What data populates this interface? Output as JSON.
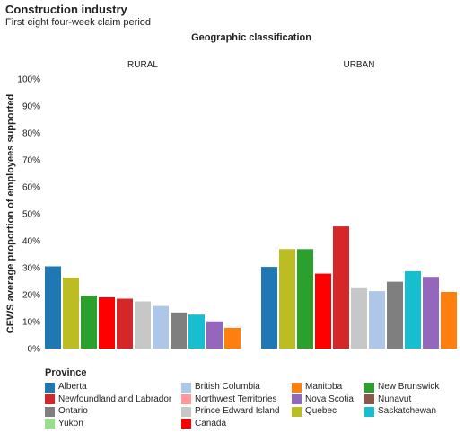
{
  "title": "Construction industry",
  "subtitle": "First eight four-week claim period",
  "chart_data": {
    "type": "bar",
    "facet_title": "Geographic classification",
    "ylabel": "CEWS average proportion of employees supported",
    "ylim": [
      0,
      100
    ],
    "yticks": [
      "0%",
      "10%",
      "20%",
      "30%",
      "40%",
      "50%",
      "60%",
      "70%",
      "80%",
      "90%",
      "100%"
    ],
    "grid": false,
    "legend_position": "bottom",
    "legend_title": "Province",
    "legend": [
      {
        "name": "Alberta",
        "color": "#1f77b4"
      },
      {
        "name": "British Columbia",
        "color": "#aec7e8"
      },
      {
        "name": "Manitoba",
        "color": "#ff7f0e"
      },
      {
        "name": "New Brunswick",
        "color": "#2ca02c"
      },
      {
        "name": "Newfoundland and Labrador",
        "color": "#d62728"
      },
      {
        "name": "Northwest Territories",
        "color": "#ff9896"
      },
      {
        "name": "Nova Scotia",
        "color": "#9467bd"
      },
      {
        "name": "Nunavut",
        "color": "#8c564b"
      },
      {
        "name": "Ontario",
        "color": "#7f7f7f"
      },
      {
        "name": "Prince Edward Island",
        "color": "#c7c7c7"
      },
      {
        "name": "Quebec",
        "color": "#bcbd22"
      },
      {
        "name": "Saskatchewan",
        "color": "#17becf"
      },
      {
        "name": "Yukon",
        "color": "#98df8a"
      },
      {
        "name": "Canada",
        "color": "#ff0000"
      }
    ],
    "panels": [
      {
        "name": "RURAL",
        "bars": [
          {
            "province": "Alberta",
            "value": 30.5
          },
          {
            "province": "Quebec",
            "value": 26.3
          },
          {
            "province": "New Brunswick",
            "value": 19.6
          },
          {
            "province": "Canada",
            "value": 19.0
          },
          {
            "province": "Newfoundland and Labrador",
            "value": 18.5
          },
          {
            "province": "Prince Edward Island",
            "value": 17.5
          },
          {
            "province": "British Columbia",
            "value": 15.8
          },
          {
            "province": "Ontario",
            "value": 13.4
          },
          {
            "province": "Saskatchewan",
            "value": 12.6
          },
          {
            "province": "Nova Scotia",
            "value": 10.1
          },
          {
            "province": "Manitoba",
            "value": 7.7
          }
        ]
      },
      {
        "name": "URBAN",
        "bars": [
          {
            "province": "Alberta",
            "value": 30.3
          },
          {
            "province": "Quebec",
            "value": 36.9
          },
          {
            "province": "New Brunswick",
            "value": 36.9
          },
          {
            "province": "Canada",
            "value": 27.8
          },
          {
            "province": "Newfoundland and Labrador",
            "value": 45.3
          },
          {
            "province": "Prince Edward Island",
            "value": 22.4
          },
          {
            "province": "British Columbia",
            "value": 21.3
          },
          {
            "province": "Ontario",
            "value": 24.8
          },
          {
            "province": "Saskatchewan",
            "value": 28.7
          },
          {
            "province": "Nova Scotia",
            "value": 26.6
          },
          {
            "province": "Manitoba",
            "value": 21.0
          }
        ]
      }
    ]
  }
}
